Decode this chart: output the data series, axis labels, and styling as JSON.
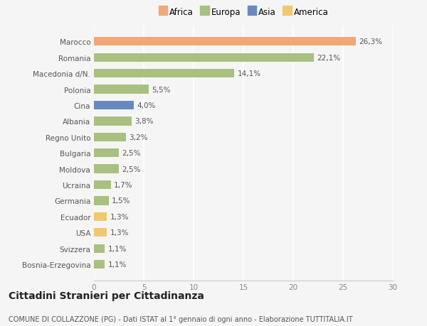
{
  "categories": [
    "Marocco",
    "Romania",
    "Macedonia d/N.",
    "Polonia",
    "Cina",
    "Albania",
    "Regno Unito",
    "Bulgaria",
    "Moldova",
    "Ucraina",
    "Germania",
    "Ecuador",
    "USA",
    "Svizzera",
    "Bosnia-Erzegovina"
  ],
  "values": [
    26.3,
    22.1,
    14.1,
    5.5,
    4.0,
    3.8,
    3.2,
    2.5,
    2.5,
    1.7,
    1.5,
    1.3,
    1.3,
    1.1,
    1.1
  ],
  "labels": [
    "26,3%",
    "22,1%",
    "14,1%",
    "5,5%",
    "4,0%",
    "3,8%",
    "3,2%",
    "2,5%",
    "2,5%",
    "1,7%",
    "1,5%",
    "1,3%",
    "1,3%",
    "1,1%",
    "1,1%"
  ],
  "colors": [
    "#f0a878",
    "#a8c080",
    "#a8c080",
    "#a8c080",
    "#6888c0",
    "#a8c080",
    "#a8c080",
    "#a8c080",
    "#a8c080",
    "#a8c080",
    "#a8c080",
    "#f0c870",
    "#f0c870",
    "#a8c080",
    "#a8c080"
  ],
  "legend": [
    {
      "label": "Africa",
      "color": "#f0a878"
    },
    {
      "label": "Europa",
      "color": "#a8c080"
    },
    {
      "label": "Asia",
      "color": "#6888c0"
    },
    {
      "label": "America",
      "color": "#f0c870"
    }
  ],
  "xlim": [
    0,
    30
  ],
  "xticks": [
    0,
    5,
    10,
    15,
    20,
    25,
    30
  ],
  "title": "Cittadini Stranieri per Cittadinanza",
  "subtitle": "COMUNE DI COLLAZZONE (PG) - Dati ISTAT al 1° gennaio di ogni anno - Elaborazione TUTTITALIA.IT",
  "background_color": "#f5f5f5",
  "bar_height": 0.55,
  "label_fontsize": 7.5,
  "tick_fontsize": 7.5,
  "title_fontsize": 10,
  "subtitle_fontsize": 7.0
}
